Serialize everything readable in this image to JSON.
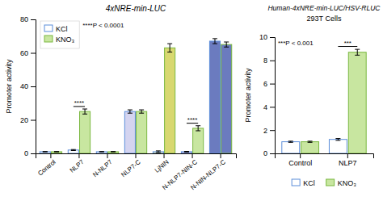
{
  "chart_data": [
    {
      "type": "bar",
      "title": "4xNRE-min-LUC",
      "ylabel": "Promoter activity",
      "categories": [
        "Control",
        "NLP7",
        "N-NLP7",
        "NLP7-C",
        "LjNIN",
        "N-NLP7-NIN-C",
        "N-NIN-NLP7-C"
      ],
      "series": [
        {
          "name": "KCl",
          "color": "#5b8dd9",
          "colors": [
            "#ffffff",
            "#ffffff",
            "#ffffff",
            "#d4d4f0",
            "#e8e8b0",
            "#c8b8e0",
            "#6b7bbf"
          ],
          "values": [
            1.0,
            2.0,
            1.0,
            25.0,
            1.0,
            1.0,
            67.0
          ],
          "errors": [
            0.1,
            0.3,
            0.1,
            1.0,
            0.5,
            0.2,
            1.5
          ]
        },
        {
          "name": "KNO₃",
          "color": "#7ab840",
          "colors": [
            "#c8e6a0",
            "#c8e6a0",
            "#c8e6a0",
            "#c8e6a0",
            "#d8d870",
            "#c8e6a0",
            "#6b7bbf"
          ],
          "values": [
            1.0,
            25.0,
            1.0,
            25.0,
            63.0,
            15.0,
            65.0
          ],
          "errors": [
            0.1,
            1.5,
            0.1,
            1.0,
            2.5,
            1.5,
            1.5
          ]
        }
      ],
      "ylim": [
        0,
        80
      ],
      "yticks": [
        0,
        20,
        40,
        60,
        80
      ],
      "annotations": [
        {
          "text": "****",
          "category": "NLP7",
          "y": 28
        },
        {
          "text": "****",
          "category": "N-NLP7-NIN-C",
          "y": 18
        },
        {
          "text": "****P < 0.0001"
        }
      ],
      "legend": "upper left"
    },
    {
      "type": "bar",
      "title": "Human-4xNRE-min-LUC/HSV-RLUC",
      "subtitle": "293T Cells",
      "ylabel": "Promoter activity",
      "categories": [
        "Control",
        "NLP7"
      ],
      "series": [
        {
          "name": "KCl",
          "color": "#5b8dd9",
          "colors": [
            "#ffffff",
            "#ffffff"
          ],
          "values": [
            1.0,
            1.2
          ],
          "errors": [
            0.05,
            0.08
          ]
        },
        {
          "name": "KNO₃",
          "color": "#7ab840",
          "colors": [
            "#c8e6a0",
            "#c8e6a0"
          ],
          "values": [
            1.0,
            8.7
          ],
          "errors": [
            0.05,
            0.25
          ]
        }
      ],
      "ylim": [
        0,
        10
      ],
      "yticks": [
        0,
        2,
        4,
        6,
        8,
        10
      ],
      "annotations": [
        {
          "text": "***",
          "category": "NLP7",
          "y": 9.2
        },
        {
          "text": "***P < 0.001"
        }
      ],
      "legend": "bottom"
    }
  ]
}
